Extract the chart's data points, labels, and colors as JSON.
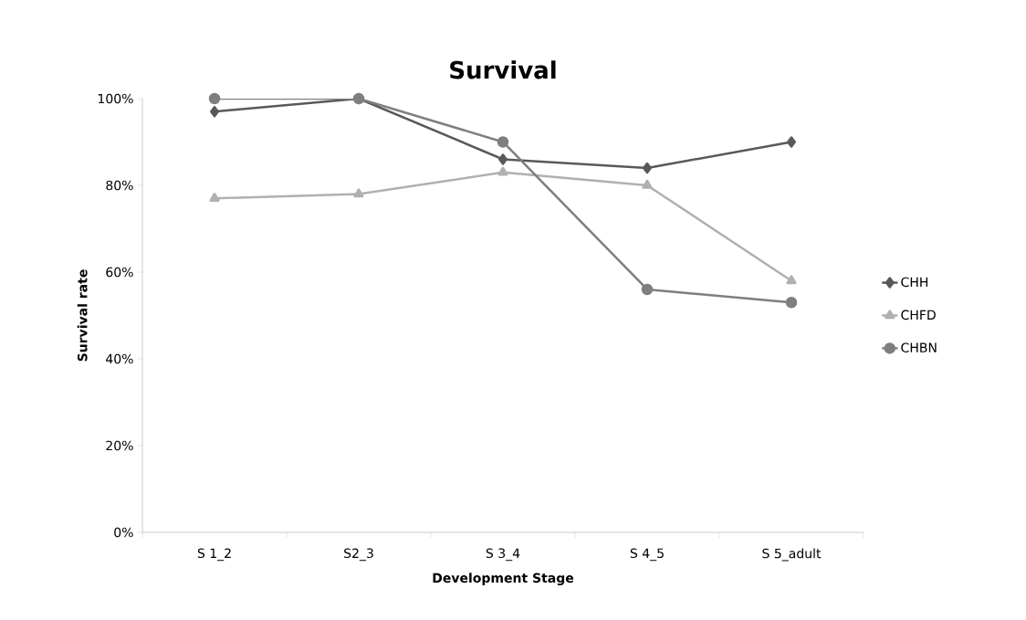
{
  "chart_data": {
    "type": "line",
    "title": "Survival",
    "xlabel": "Development Stage",
    "ylabel": "Survival rate",
    "categories": [
      "S 1_2",
      "S2_3",
      "S 3_4",
      "S 4_5",
      "S 5_adult"
    ],
    "series": [
      {
        "name": "CHH",
        "color": "#595959",
        "marker": "diamond",
        "values": [
          97,
          100,
          86,
          84,
          90
        ]
      },
      {
        "name": "CHFD",
        "color": "#b0b0b0",
        "marker": "triangle",
        "values": [
          77,
          78,
          83,
          80,
          58
        ]
      },
      {
        "name": "CHBN",
        "color": "#7f7f7f",
        "marker": "circle",
        "values": [
          100,
          100,
          90,
          56,
          53
        ]
      }
    ],
    "ylim": [
      0,
      100
    ],
    "yticks": [
      {
        "value": 0,
        "label": "0%"
      },
      {
        "value": 20,
        "label": "20%"
      },
      {
        "value": 40,
        "label": "40%"
      },
      {
        "value": 60,
        "label": "60%"
      },
      {
        "value": 80,
        "label": "80%"
      },
      {
        "value": 100,
        "label": "100%"
      }
    ],
    "grid": false,
    "legend": "right",
    "line_style": "solid"
  }
}
